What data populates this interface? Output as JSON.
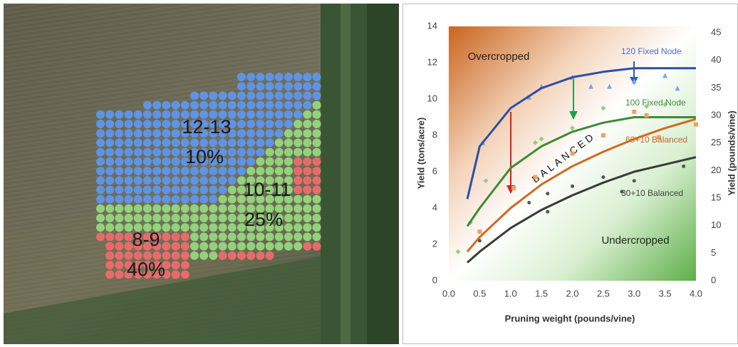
{
  "image_panel": {
    "zones": [
      {
        "range": "12-13",
        "share": "10%"
      },
      {
        "range": "10-11",
        "share": "25%"
      },
      {
        "range": "8-9",
        "share": "40%"
      }
    ]
  },
  "chart_data": {
    "type": "line",
    "x": [
      0.3,
      0.5,
      1.0,
      1.5,
      2.0,
      2.5,
      3.0,
      3.5,
      4.0
    ],
    "series": [
      {
        "name": "120 Fixed Node",
        "color": "#2c4fa3",
        "marker": "triangle",
        "point_color": "#7aa7e0",
        "values": [
          4.5,
          7.4,
          9.5,
          10.6,
          11.2,
          11.5,
          11.7,
          11.7,
          11.7
        ],
        "points_x": [
          0.55,
          1.3,
          1.5,
          2.0,
          2.3,
          2.6,
          3.0,
          3.5,
          3.7
        ],
        "points_y": [
          7.6,
          10.1,
          10.7,
          11.2,
          10.7,
          10.7,
          11.0,
          11.3,
          10.6
        ]
      },
      {
        "name": "100 Fixed Node",
        "color": "#3d8b37",
        "marker": "diamond",
        "point_color": "#8fd07a",
        "values": [
          3.0,
          4.0,
          6.2,
          7.4,
          8.2,
          8.7,
          9.0,
          9.0,
          9.0
        ],
        "points_x": [
          0.15,
          0.35,
          0.6,
          1.4,
          1.5,
          2.0,
          2.5,
          3.2,
          3.5
        ],
        "points_y": [
          1.6,
          3.2,
          5.5,
          7.6,
          7.8,
          8.4,
          9.5,
          9.6,
          9.7
        ]
      },
      {
        "name": "60+10 Balanced",
        "color": "#d2691e",
        "marker": "square",
        "point_color": "#f0a060",
        "values": [
          1.6,
          2.4,
          4.0,
          5.3,
          6.3,
          7.1,
          7.8,
          8.4,
          8.9
        ],
        "points_x": [
          0.5,
          1.05,
          1.4,
          2.0,
          2.5,
          3.0,
          3.2,
          3.4,
          4.0
        ],
        "points_y": [
          2.7,
          5.1,
          5.7,
          7.0,
          8.0,
          9.3,
          9.1,
          7.9,
          8.6
        ]
      },
      {
        "name": "30+10 Balanced",
        "color": "#3a3a3a",
        "marker": "circle",
        "point_color": "#555555",
        "values": [
          1.0,
          1.6,
          2.9,
          3.9,
          4.7,
          5.4,
          6.0,
          6.4,
          6.8
        ],
        "points_x": [
          0.5,
          1.3,
          1.6,
          1.6,
          2.0,
          2.5,
          2.8,
          3.0,
          3.8
        ],
        "points_y": [
          2.2,
          4.3,
          3.8,
          4.8,
          5.2,
          5.7,
          4.9,
          5.5,
          6.3
        ]
      }
    ],
    "xlim": [
      0,
      4
    ],
    "xticks": [
      {
        "value": 0,
        "label": "0.0"
      },
      0.5,
      {
        "value": 1,
        "label": "1.0"
      },
      1.5,
      {
        "value": 2,
        "label": "2.0"
      },
      2.5,
      {
        "value": 3,
        "label": "3.0"
      },
      3.5,
      {
        "value": 4,
        "label": "4.0"
      }
    ],
    "ylim": [
      0,
      14
    ],
    "yticks": [
      0,
      2,
      4,
      6,
      8,
      10,
      12,
      14
    ],
    "y2lim": [
      0,
      45
    ],
    "y2ticks": [
      0,
      5,
      10,
      15,
      20,
      25,
      30,
      35,
      40,
      45
    ],
    "x_label": "Pruning weight (pounds/vine)",
    "y_label": "Yield (tons/acre)",
    "y2_label": "Yield (pounds/vine)",
    "annotations": [
      "Overcropped",
      "Undercropped",
      "BALANCED"
    ]
  }
}
